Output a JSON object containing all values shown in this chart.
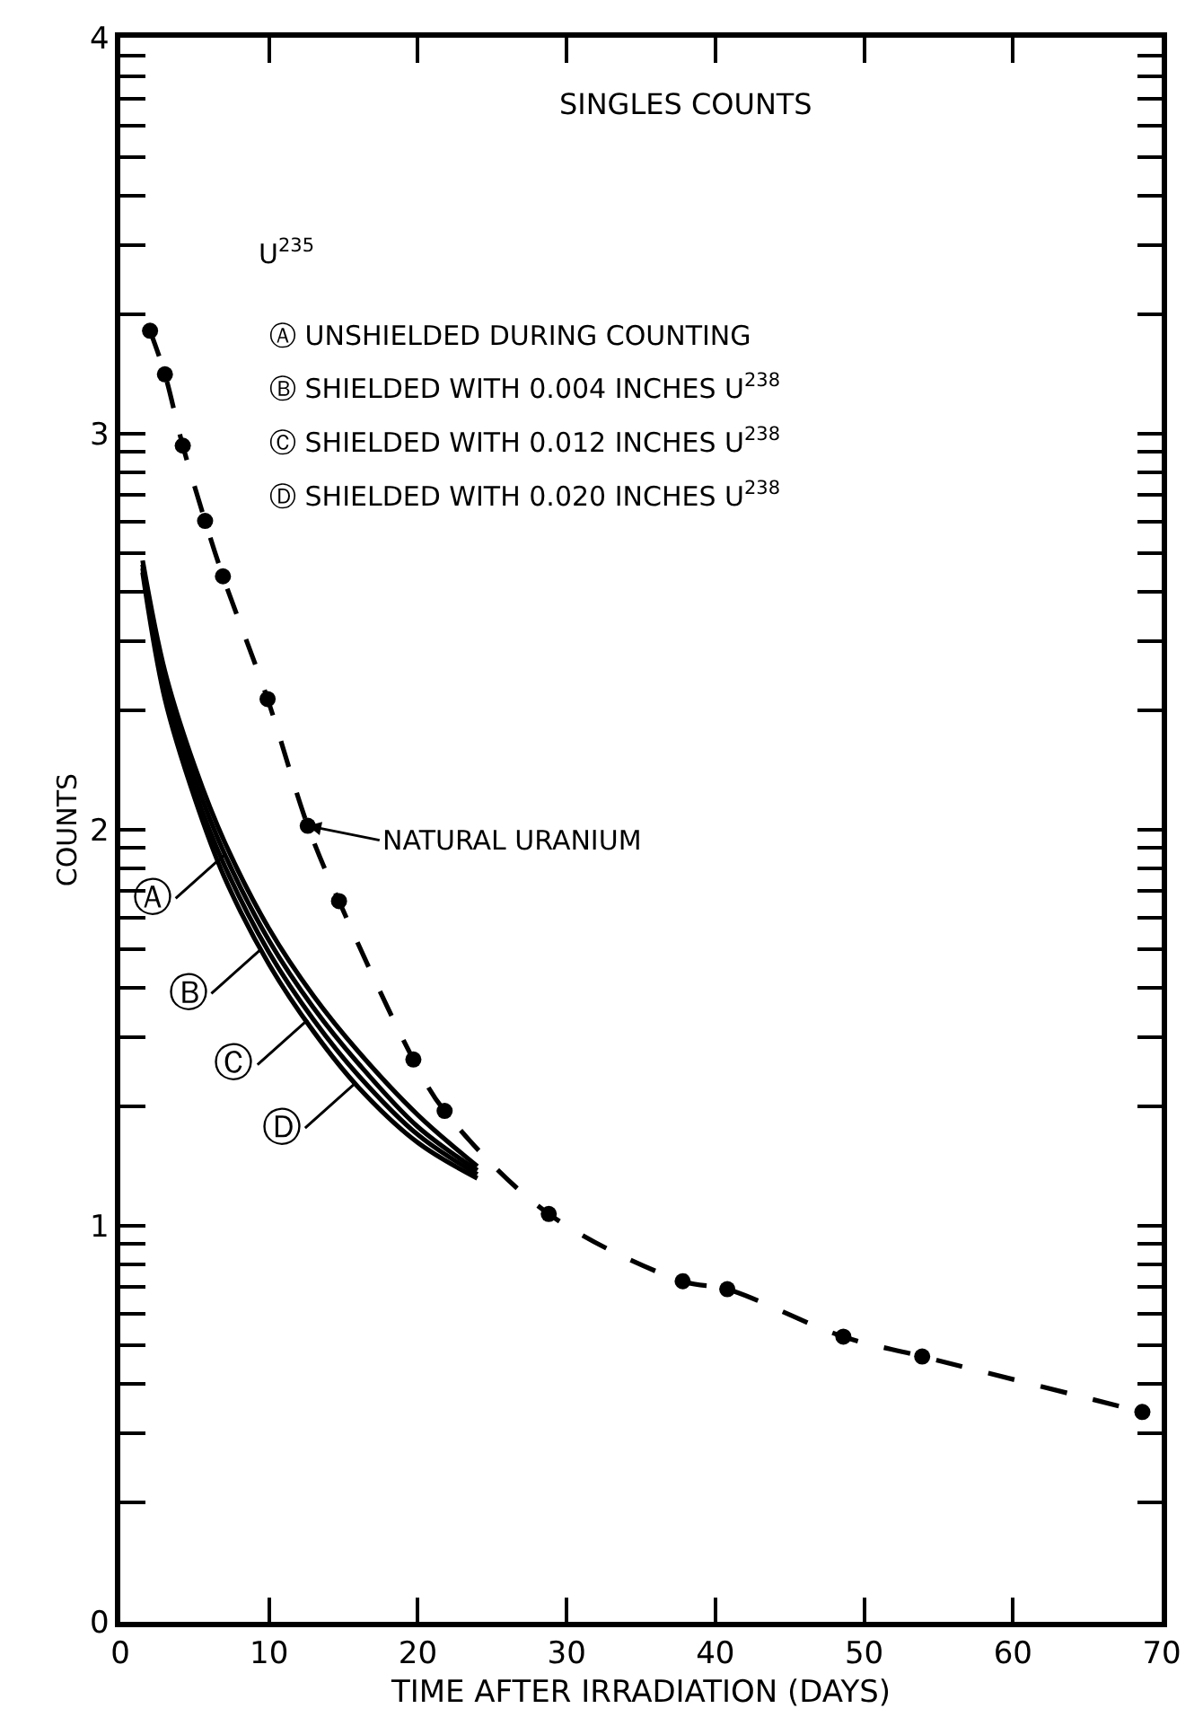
{
  "chart_data": {
    "type": "line",
    "title": "SINGLES COUNTS",
    "xlabel": "TIME AFTER IRRADIATION (DAYS)",
    "ylabel": "COUNTS",
    "xlim": [
      0,
      70
    ],
    "xticks": [
      0,
      10,
      20,
      30,
      40,
      50,
      60,
      70
    ],
    "ylim": [
      0,
      4
    ],
    "yticks": [
      0,
      {
        "value": 0.301,
        "label": null
      },
      {
        "value": 0.477,
        "label": null
      },
      {
        "value": 0.602,
        "label": null
      },
      {
        "value": 0.699,
        "label": null
      },
      {
        "value": 0.778,
        "label": null
      },
      {
        "value": 0.845,
        "label": null
      },
      {
        "value": 0.903,
        "label": null
      },
      {
        "value": 0.954,
        "label": null
      },
      1,
      {
        "value": 1.301,
        "label": null
      },
      {
        "value": 1.477,
        "label": null
      },
      {
        "value": 1.602,
        "label": null
      },
      {
        "value": 1.699,
        "label": null
      },
      {
        "value": 1.778,
        "label": null
      },
      {
        "value": 1.845,
        "label": null
      },
      {
        "value": 1.903,
        "label": null
      },
      {
        "value": 1.954,
        "label": null
      },
      2,
      {
        "value": 2.301,
        "label": null
      },
      {
        "value": 2.477,
        "label": null
      },
      {
        "value": 2.602,
        "label": null
      },
      {
        "value": 2.699,
        "label": null
      },
      {
        "value": 2.778,
        "label": null
      },
      {
        "value": 2.845,
        "label": null
      },
      {
        "value": 2.903,
        "label": null
      },
      {
        "value": 2.954,
        "label": null
      },
      3,
      {
        "value": 3.301,
        "label": null
      },
      {
        "value": 3.477,
        "label": null
      },
      {
        "value": 3.602,
        "label": null
      },
      {
        "value": 3.699,
        "label": null
      },
      {
        "value": 3.778,
        "label": null
      },
      {
        "value": 3.845,
        "label": null
      },
      {
        "value": 3.903,
        "label": null
      },
      {
        "value": 3.954,
        "label": null
      },
      4
    ],
    "series": [
      {
        "color": "#000000",
        "marker": "circle",
        "line_style": "dashed",
        "x": [
          2.0,
          3.0,
          4.2,
          5.7,
          6.9,
          9.9,
          12.6,
          14.7,
          19.7,
          21.8,
          28.8,
          37.8,
          40.8,
          48.6,
          53.9,
          68.7
        ],
        "values": [
          3.26,
          3.15,
          2.97,
          2.78,
          2.64,
          2.33,
          2.01,
          1.82,
          1.42,
          1.29,
          1.03,
          0.86,
          0.84,
          0.72,
          0.67,
          0.53
        ]
      },
      {
        "color": "#000000",
        "marker": "none",
        "line_style": "solid",
        "x": [
          1.5,
          3,
          5,
          7,
          10,
          13,
          16,
          20,
          24
        ],
        "values": [
          2.68,
          2.4,
          2.16,
          1.97,
          1.75,
          1.58,
          1.44,
          1.28,
          1.15
        ]
      },
      {
        "color": "#000000",
        "marker": "none",
        "line_style": "solid",
        "x": [
          1.5,
          3,
          5,
          7,
          10,
          13,
          16,
          20,
          24
        ],
        "values": [
          2.67,
          2.37,
          2.13,
          1.94,
          1.72,
          1.55,
          1.41,
          1.25,
          1.14
        ]
      },
      {
        "color": "#000000",
        "marker": "none",
        "line_style": "solid",
        "x": [
          1.5,
          3,
          5,
          7,
          10,
          13,
          16,
          20,
          24
        ],
        "values": [
          2.66,
          2.35,
          2.1,
          1.91,
          1.69,
          1.52,
          1.38,
          1.23,
          1.13
        ]
      },
      {
        "color": "#000000",
        "marker": "none",
        "line_style": "solid",
        "x": [
          1.5,
          3,
          5,
          7,
          10,
          13,
          16,
          20,
          24
        ],
        "values": [
          2.65,
          2.33,
          2.08,
          1.88,
          1.66,
          1.49,
          1.35,
          1.21,
          1.12
        ]
      }
    ],
    "annotations": [
      "U$^{235}$",
      "Ⓐ UNSHIELDED DURING COUNTING",
      "Ⓑ SHIELDED WITH 0.004 INCHES U$^{238}$",
      "Ⓒ SHIELDED WITH 0.012 INCHES U$^{238}$",
      "Ⓓ SHIELDED WITH 0.020 INCHES U$^{238}$",
      {
        "text": "NATURAL URANIUM",
        "x": 12.6,
        "y": 2.01
      },
      {
        "text": "Ⓐ",
        "x": 7.1,
        "y": 1.94
      },
      {
        "text": "Ⓑ",
        "x": 9.5,
        "y": 1.7
      },
      {
        "text": "Ⓒ",
        "x": 12.6,
        "y": 1.52
      },
      {
        "text": "Ⓓ",
        "x": 15.8,
        "y": 1.36
      }
    ]
  }
}
